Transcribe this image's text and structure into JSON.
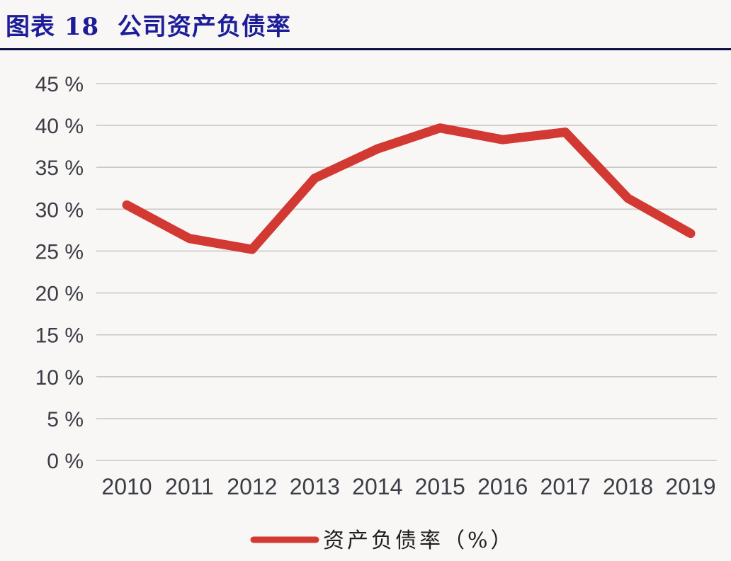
{
  "header": {
    "title": "图表 18  公司资产负债率"
  },
  "chart_data": {
    "type": "line",
    "title": "公司资产负债率",
    "categories": [
      "2010",
      "2011",
      "2012",
      "2013",
      "2014",
      "2015",
      "2016",
      "2017",
      "2018",
      "2019"
    ],
    "series": [
      {
        "name": "资产负债率（%）",
        "values": [
          30.5,
          26.5,
          25.2,
          33.7,
          37.2,
          39.7,
          38.3,
          39.2,
          31.3,
          27.1
        ]
      }
    ],
    "legend": "资产负债率（%）",
    "legend_position": "bottom",
    "xlabel": "",
    "ylabel": "",
    "ytick_suffix": " %",
    "yticks": [
      45,
      40,
      35,
      30,
      25,
      20,
      15,
      10,
      5,
      0
    ],
    "ylim": [
      0,
      45
    ],
    "grid": "horizontal-only",
    "line_color": "#d23933",
    "grid_color": "#c9c9c9",
    "tick_color": "#3c3c46",
    "title_color": "#1d1d99"
  }
}
